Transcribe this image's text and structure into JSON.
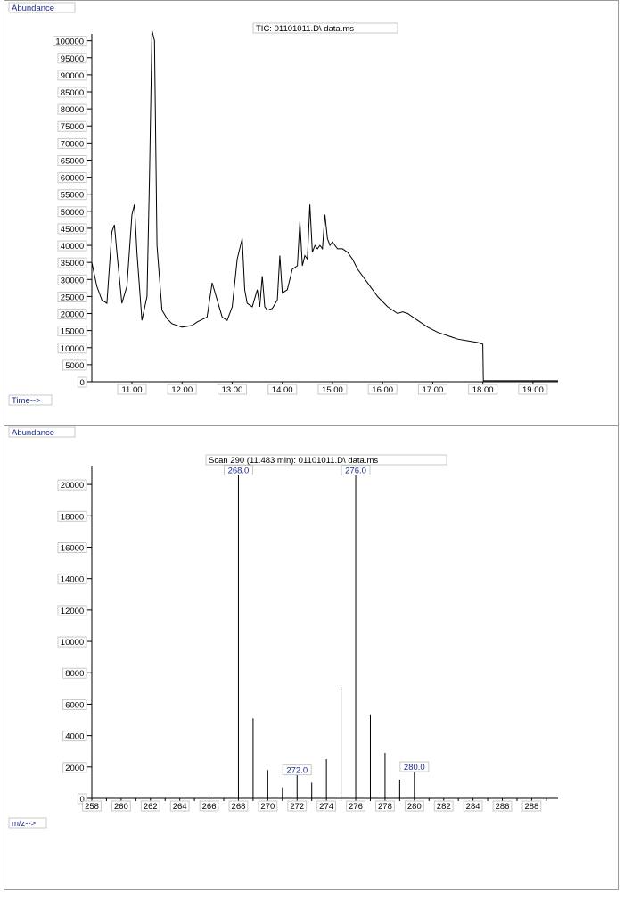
{
  "colors": {
    "line": "#000000",
    "label_blue": "#1a2a8c",
    "box_border": "#c8c8c8",
    "frame": "#9a9a9a"
  },
  "chart_data": [
    {
      "type": "line",
      "title": "TIC: 01101011.D\\ data.ms",
      "ylabel": "Abundance",
      "xlabel": "Time-->",
      "xlim": [
        10.2,
        19.5
      ],
      "ylim": [
        0,
        102000
      ],
      "xticks": [
        "11.00",
        "12.00",
        "13.00",
        "14.00",
        "15.00",
        "16.00",
        "17.00",
        "18.00",
        "19.00"
      ],
      "yticks": [
        "0",
        "5000",
        "10000",
        "15000",
        "20000",
        "25000",
        "30000",
        "35000",
        "40000",
        "45000",
        "50000",
        "55000",
        "60000",
        "65000",
        "70000",
        "75000",
        "80000",
        "85000",
        "90000",
        "95000",
        "100000"
      ],
      "series": [
        {
          "x": [
            10.2,
            10.3,
            10.4,
            10.5,
            10.6,
            10.65,
            10.7,
            10.8,
            10.9,
            11.0,
            11.05,
            11.1,
            11.2,
            11.3,
            11.35,
            11.4,
            11.45,
            11.5,
            11.6,
            11.7,
            11.8,
            12.0,
            12.2,
            12.3,
            12.5,
            12.6,
            12.7,
            12.8,
            12.9,
            13.0,
            13.1,
            13.2,
            13.25,
            13.3,
            13.4,
            13.5,
            13.55,
            13.6,
            13.65,
            13.7,
            13.8,
            13.9,
            13.95,
            14.0,
            14.1,
            14.2,
            14.3,
            14.35,
            14.4,
            14.45,
            14.5,
            14.55,
            14.6,
            14.65,
            14.7,
            14.75,
            14.8,
            14.85,
            14.9,
            14.95,
            15.0,
            15.1,
            15.2,
            15.3,
            15.4,
            15.5,
            15.7,
            15.9,
            16.1,
            16.3,
            16.4,
            16.5,
            16.7,
            16.9,
            17.1,
            17.3,
            17.5,
            17.7,
            17.9,
            18.0,
            18.01,
            19.5
          ],
          "y": [
            35000,
            28000,
            24000,
            23000,
            44000,
            46000,
            38000,
            23000,
            28000,
            49000,
            52000,
            38000,
            18000,
            25000,
            60000,
            103000,
            100000,
            40000,
            21000,
            18500,
            17000,
            16000,
            16500,
            17500,
            19000,
            29000,
            24000,
            19000,
            18000,
            22000,
            36000,
            42000,
            27000,
            23000,
            22000,
            27000,
            22000,
            31000,
            22000,
            21000,
            21500,
            24000,
            37000,
            26000,
            27000,
            33000,
            34000,
            47000,
            34000,
            37000,
            36000,
            52000,
            38000,
            40000,
            39000,
            40000,
            39000,
            49000,
            42000,
            40000,
            41000,
            39000,
            39000,
            38000,
            36000,
            33000,
            29000,
            25000,
            22000,
            20000,
            20500,
            20000,
            18000,
            16000,
            14500,
            13500,
            12500,
            12000,
            11500,
            11000,
            300,
            300
          ]
        }
      ]
    },
    {
      "type": "bar",
      "title": "Scan 290 (11.483 min): 01101011.D\\ data.ms",
      "ylabel": "Abundance",
      "xlabel": "m/z-->",
      "xlim": [
        258,
        289.8
      ],
      "ylim": [
        0,
        21200
      ],
      "xticks": [
        "258",
        "260",
        "262",
        "264",
        "266",
        "268",
        "270",
        "272",
        "274",
        "276",
        "278",
        "280",
        "282",
        "284",
        "286",
        "288"
      ],
      "yticks": [
        "0",
        "2000",
        "4000",
        "6000",
        "8000",
        "10000",
        "12000",
        "14000",
        "16000",
        "18000",
        "20000"
      ],
      "x": [
        268,
        269,
        270,
        271,
        272,
        273,
        274,
        275,
        276,
        277,
        278,
        279,
        280
      ],
      "values": [
        20600,
        5100,
        1800,
        700,
        1500,
        1000,
        2500,
        7100,
        20600,
        5300,
        2900,
        1200,
        1700
      ],
      "peak_labels": [
        "268.0",
        "272.0",
        "276.0",
        "280.0"
      ]
    }
  ]
}
